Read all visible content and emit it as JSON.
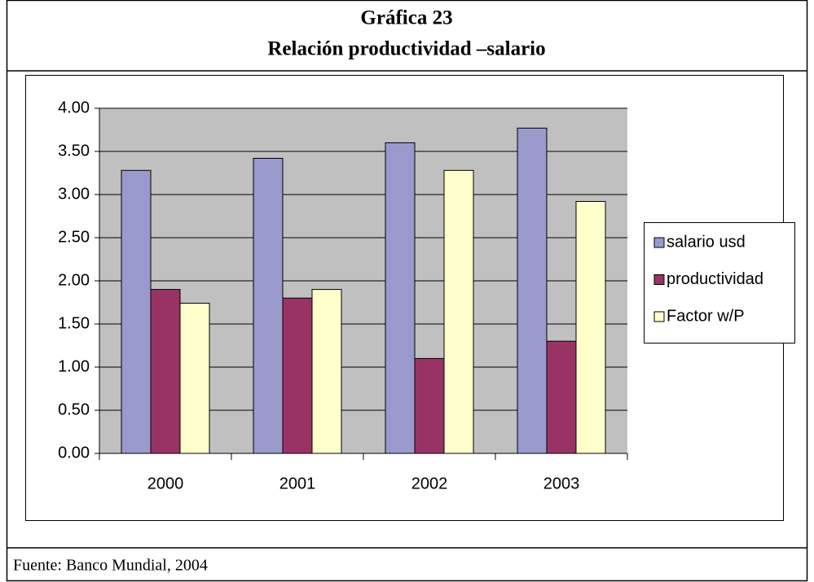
{
  "title": "Gráfica 23",
  "subtitle": "Relación productividad –salario",
  "chart_data": {
    "type": "bar",
    "categories": [
      "2000",
      "2001",
      "2002",
      "2003"
    ],
    "series": [
      {
        "name": "salario usd",
        "color": "#9999cc",
        "values": [
          3.28,
          3.42,
          3.6,
          3.77
        ]
      },
      {
        "name": "productividad",
        "color": "#993366",
        "values": [
          1.9,
          1.8,
          1.1,
          1.3
        ]
      },
      {
        "name": "Factor w/P",
        "color": "#ffffcc",
        "values": [
          1.74,
          1.9,
          3.28,
          2.92
        ]
      }
    ],
    "ylim": [
      0,
      4
    ],
    "yticks": [
      {
        "value": 0,
        "label": "0.00"
      },
      {
        "value": 0.5,
        "label": "0.50"
      },
      {
        "value": 1,
        "label": "1.00"
      },
      {
        "value": 1.5,
        "label": "1.50"
      },
      {
        "value": 2,
        "label": "2.00"
      },
      {
        "value": 2.5,
        "label": "2.50"
      },
      {
        "value": 3,
        "label": "3.00"
      },
      {
        "value": 3.5,
        "label": "3.50"
      },
      {
        "value": 4,
        "label": "4.00"
      }
    ],
    "grid": true,
    "legend": "right",
    "plot_background": "#c0c0c0"
  },
  "source": "Fuente: Banco Mundial, 2004"
}
